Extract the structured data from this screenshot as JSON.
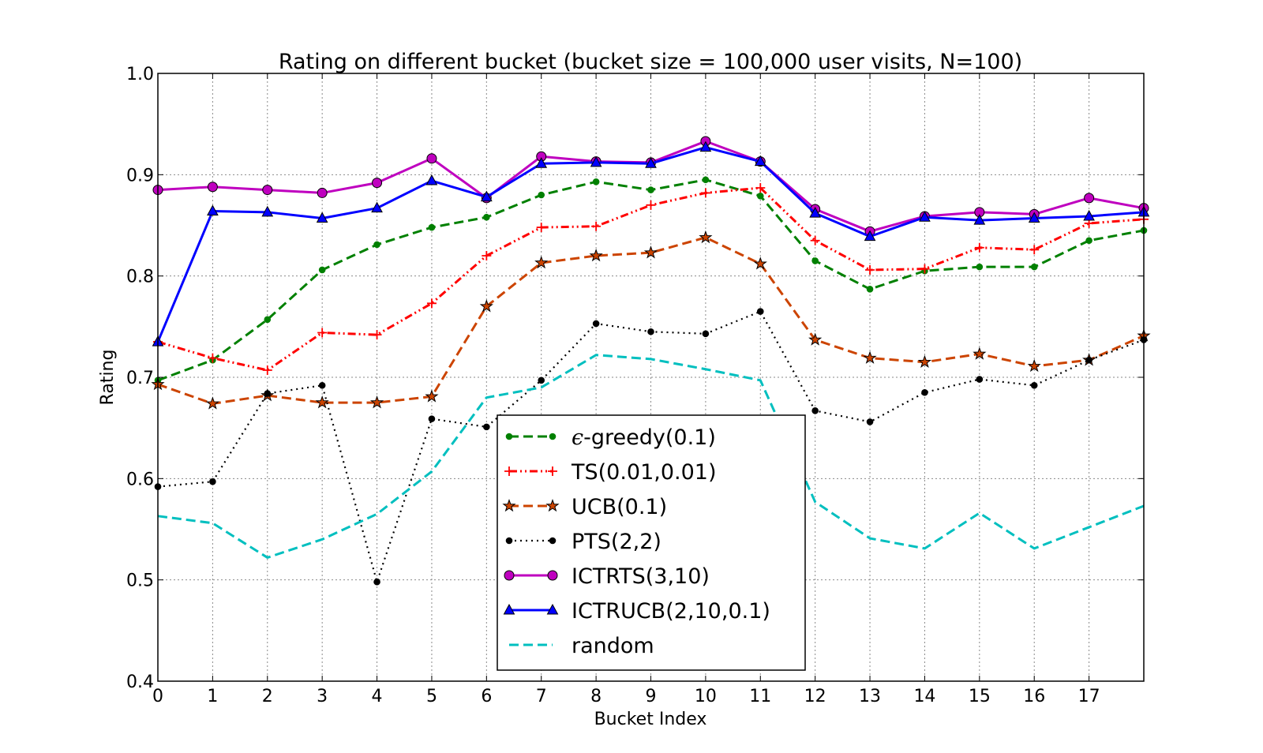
{
  "chart_data": {
    "type": "line",
    "title": "Rating on different bucket (bucket size = 100,000 user visits, N=100)",
    "xlabel": "Bucket Index",
    "ylabel": "Rating",
    "xlim": [
      0,
      18
    ],
    "ylim": [
      0.4,
      1.0
    ],
    "xticks": [
      "0",
      "1",
      "2",
      "3",
      "4",
      "5",
      "6",
      "7",
      "8",
      "9",
      "10",
      "11",
      "12",
      "13",
      "14",
      "15",
      "16",
      "17"
    ],
    "yticks": [
      "0.4",
      "0.5",
      "0.6",
      "0.7",
      "0.8",
      "0.9",
      "1.0"
    ],
    "grid": true,
    "legend_position": "lower-center",
    "x": [
      0,
      1,
      2,
      3,
      4,
      5,
      6,
      7,
      8,
      9,
      10,
      11,
      12,
      13,
      14,
      15,
      16,
      17,
      18
    ],
    "series": [
      {
        "name": "-greedy(0.1)",
        "symbol": "ϵ",
        "color": "#008000",
        "dash": "dashed",
        "marker": "dot",
        "values": [
          0.697,
          0.717,
          0.757,
          0.806,
          0.831,
          0.848,
          0.858,
          0.88,
          0.893,
          0.885,
          0.895,
          0.879,
          0.815,
          0.787,
          0.805,
          0.809,
          0.809,
          0.835,
          0.845
        ]
      },
      {
        "name": "TS(0.01,0.01)",
        "color": "#ff0000",
        "dash": "dashdotdot",
        "marker": "plus",
        "values": [
          0.735,
          0.719,
          0.707,
          0.744,
          0.742,
          0.773,
          0.82,
          0.848,
          0.849,
          0.87,
          0.882,
          0.887,
          0.835,
          0.806,
          0.807,
          0.828,
          0.826,
          0.852,
          0.856
        ]
      },
      {
        "name": "UCB(0.1)",
        "color": "#cc4400",
        "dash": "dashed",
        "marker": "star",
        "values": [
          0.693,
          0.674,
          0.682,
          0.675,
          0.675,
          0.681,
          0.77,
          0.813,
          0.82,
          0.823,
          0.838,
          0.812,
          0.737,
          0.719,
          0.715,
          0.723,
          0.711,
          0.717,
          0.741
        ]
      },
      {
        "name": "PTS(2,2)",
        "color": "#000000",
        "dash": "dotted",
        "marker": "dot",
        "values": [
          0.592,
          0.597,
          0.684,
          0.692,
          0.498,
          0.659,
          0.651,
          0.697,
          0.753,
          0.745,
          0.743,
          0.765,
          0.667,
          0.656,
          0.685,
          0.698,
          0.692,
          0.717,
          0.737
        ]
      },
      {
        "name": "ICTRTS(3,10)",
        "color": "#bf00bf",
        "dash": "solid",
        "marker": "circle",
        "values": [
          0.885,
          0.888,
          0.885,
          0.882,
          0.892,
          0.916,
          0.877,
          0.918,
          0.913,
          0.912,
          0.933,
          0.913,
          0.866,
          0.844,
          0.859,
          0.863,
          0.861,
          0.877,
          0.867
        ]
      },
      {
        "name": "ICTRUCB(2,10,0.1)",
        "color": "#0000ff",
        "dash": "solid",
        "marker": "triangle",
        "values": [
          0.735,
          0.864,
          0.863,
          0.857,
          0.867,
          0.894,
          0.878,
          0.911,
          0.912,
          0.911,
          0.927,
          0.913,
          0.862,
          0.839,
          0.858,
          0.855,
          0.857,
          0.859,
          0.863
        ]
      },
      {
        "name": "random",
        "color": "#00bfbf",
        "dash": "dashed",
        "marker": "none",
        "values": [
          0.563,
          0.556,
          0.522,
          0.54,
          0.565,
          0.607,
          0.68,
          0.69,
          0.722,
          0.718,
          0.708,
          0.697,
          0.577,
          0.541,
          0.531,
          0.566,
          0.531,
          0.552,
          0.573
        ]
      }
    ]
  }
}
